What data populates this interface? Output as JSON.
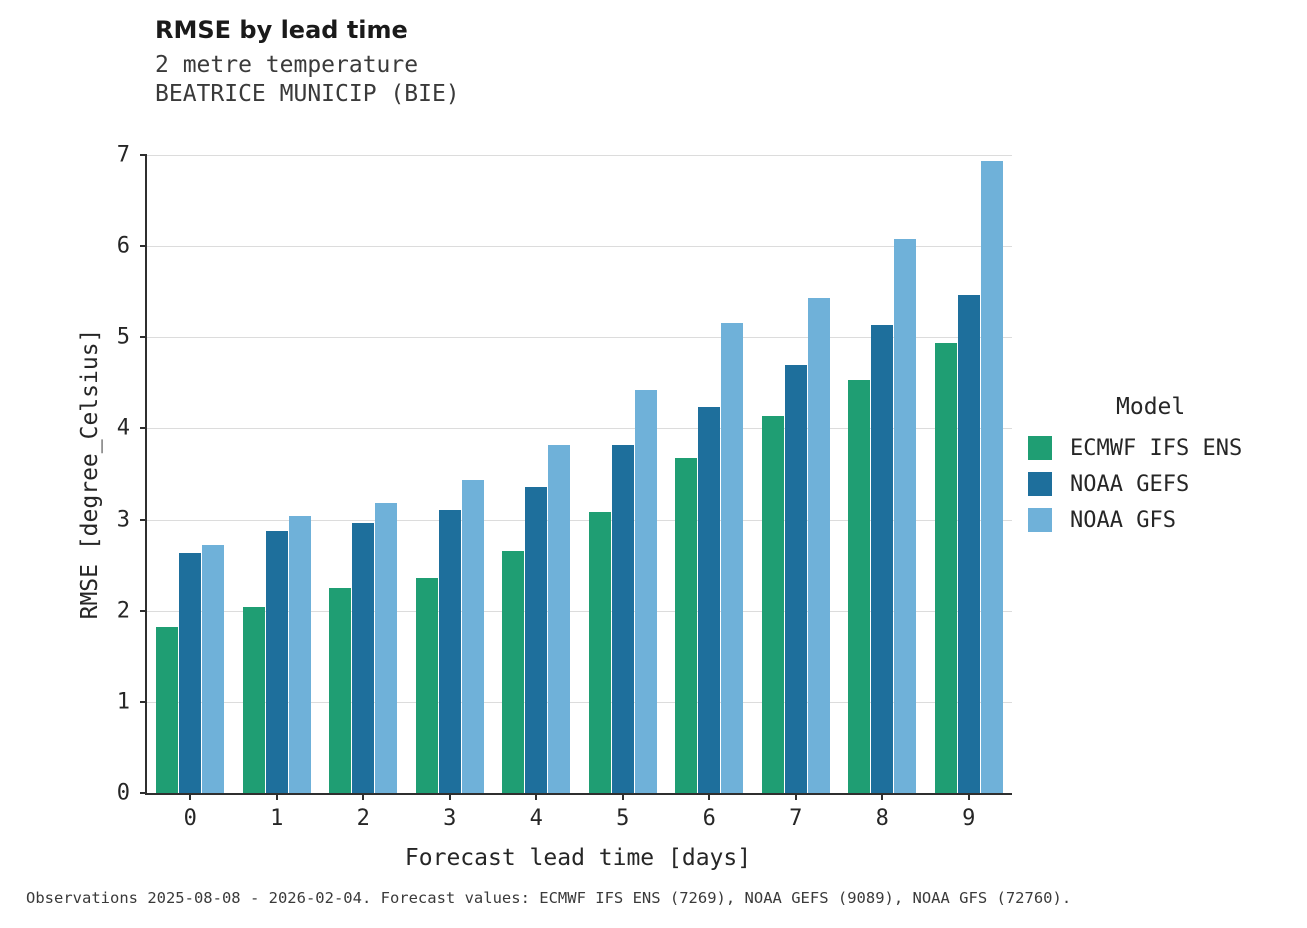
{
  "chart_data": {
    "type": "bar",
    "title": "RMSE by lead time",
    "subtitle": [
      "2 metre temperature",
      "BEATRICE MUNICIP (BIE)"
    ],
    "xlabel": "Forecast lead time [days]",
    "ylabel": "RMSE [degree_Celsius]",
    "legend_title": "Model",
    "legend_position": "right",
    "grid": "horizontal",
    "categories": [
      "0",
      "1",
      "2",
      "3",
      "4",
      "5",
      "6",
      "7",
      "8",
      "9"
    ],
    "ylim": [
      0,
      7
    ],
    "yticks": [
      0,
      1,
      2,
      3,
      4,
      5,
      6,
      7
    ],
    "series": [
      {
        "name": "ECMWF IFS ENS",
        "color": "#1f9e73",
        "values": [
          1.82,
          2.04,
          2.25,
          2.36,
          2.65,
          3.08,
          3.68,
          4.14,
          4.53,
          4.94
        ]
      },
      {
        "name": "NOAA GEFS",
        "color": "#1e6f9c",
        "values": [
          2.63,
          2.88,
          2.96,
          3.1,
          3.36,
          3.82,
          4.24,
          4.7,
          5.13,
          5.46
        ]
      },
      {
        "name": "NOAA GFS",
        "color": "#6fb1d9",
        "values": [
          2.72,
          3.04,
          3.18,
          3.43,
          3.82,
          4.42,
          5.16,
          5.43,
          6.08,
          6.93
        ]
      }
    ]
  },
  "footer": {
    "note": "Observations 2025-08-08 - 2026-02-04. Forecast values: ECMWF IFS ENS (7269), NOAA GEFS (9089), NOAA GFS (72760)."
  }
}
